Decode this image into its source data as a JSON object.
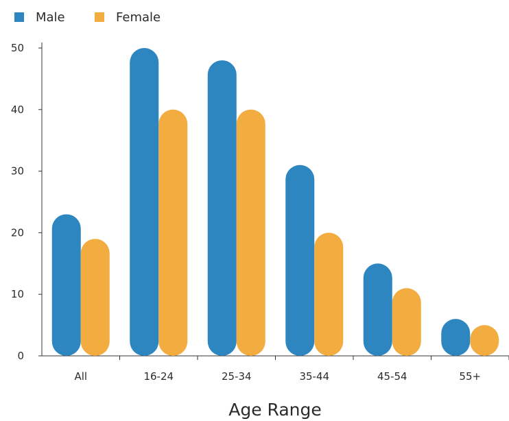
{
  "chart_data": {
    "type": "bar",
    "title": "",
    "xlabel": "Age Range",
    "ylabel": "",
    "categories": [
      "All",
      "16-24",
      "25-34",
      "35-44",
      "45-54",
      "55+"
    ],
    "series": [
      {
        "name": "Male",
        "color": "#2e86c1",
        "values": [
          23,
          50,
          48,
          31,
          15,
          6
        ]
      },
      {
        "name": "Female",
        "color": "#f2ac3f",
        "values": [
          19,
          40,
          40,
          20,
          11,
          5
        ]
      }
    ],
    "ylim": [
      0,
      50
    ],
    "yticks": [
      0,
      10,
      20,
      30,
      40,
      50
    ],
    "legend_position": "top-left",
    "bar_style": "rounded",
    "grid": false
  }
}
